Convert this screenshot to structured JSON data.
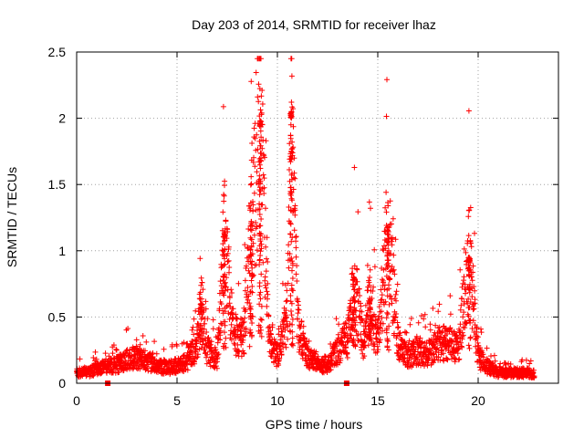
{
  "chart_data": {
    "type": "scatter",
    "title": "Day 203 of 2014, SRMTID for receiver lhaz",
    "xlabel": "GPS time / hours",
    "ylabel": "SRMTID / TECUs",
    "xlim": [
      0,
      24
    ],
    "ylim": [
      0,
      2.5
    ],
    "xticks": [
      0,
      5,
      10,
      15,
      20
    ],
    "xtick_labels": [
      "0",
      "5",
      "10",
      "15",
      "20"
    ],
    "yticks": [
      0,
      0.5,
      1,
      1.5,
      2,
      2.5
    ],
    "ytick_labels": [
      "0",
      "0.5",
      "1",
      "1.5",
      "2",
      "2.5"
    ],
    "grid": true,
    "marker": "+",
    "series_color": "#ff0000",
    "series": [
      {
        "name": "SRMTID",
        "approx_profile": [
          {
            "x": 0.0,
            "y": 0.08
          },
          {
            "x": 0.5,
            "y": 0.08
          },
          {
            "x": 1.0,
            "y": 0.11
          },
          {
            "x": 1.5,
            "y": 0.12
          },
          {
            "x": 2.0,
            "y": 0.14
          },
          {
            "x": 2.5,
            "y": 0.18
          },
          {
            "x": 3.0,
            "y": 0.2
          },
          {
            "x": 3.5,
            "y": 0.17
          },
          {
            "x": 4.0,
            "y": 0.13
          },
          {
            "x": 4.5,
            "y": 0.12
          },
          {
            "x": 5.0,
            "y": 0.13
          },
          {
            "x": 5.5,
            "y": 0.17
          },
          {
            "x": 6.0,
            "y": 0.3
          },
          {
            "x": 6.2,
            "y": 0.58
          },
          {
            "x": 6.5,
            "y": 0.25
          },
          {
            "x": 7.0,
            "y": 0.18
          },
          {
            "x": 7.35,
            "y": 1.1
          },
          {
            "x": 7.8,
            "y": 0.38
          },
          {
            "x": 8.3,
            "y": 0.33
          },
          {
            "x": 8.7,
            "y": 1.2
          },
          {
            "x": 9.15,
            "y": 1.97
          },
          {
            "x": 9.6,
            "y": 0.28
          },
          {
            "x": 10.0,
            "y": 0.22
          },
          {
            "x": 10.5,
            "y": 0.5
          },
          {
            "x": 10.7,
            "y": 2.05
          },
          {
            "x": 11.0,
            "y": 0.45
          },
          {
            "x": 11.5,
            "y": 0.2
          },
          {
            "x": 12.0,
            "y": 0.15
          },
          {
            "x": 12.5,
            "y": 0.14
          },
          {
            "x": 13.0,
            "y": 0.25
          },
          {
            "x": 13.5,
            "y": 0.35
          },
          {
            "x": 13.8,
            "y": 0.78
          },
          {
            "x": 14.3,
            "y": 0.3
          },
          {
            "x": 14.6,
            "y": 0.62
          },
          {
            "x": 15.0,
            "y": 0.3
          },
          {
            "x": 15.5,
            "y": 1.17
          },
          {
            "x": 16.0,
            "y": 0.3
          },
          {
            "x": 16.5,
            "y": 0.2
          },
          {
            "x": 17.0,
            "y": 0.25
          },
          {
            "x": 17.5,
            "y": 0.22
          },
          {
            "x": 18.0,
            "y": 0.3
          },
          {
            "x": 18.5,
            "y": 0.3
          },
          {
            "x": 19.0,
            "y": 0.25
          },
          {
            "x": 19.55,
            "y": 0.93
          },
          {
            "x": 20.0,
            "y": 0.2
          },
          {
            "x": 20.5,
            "y": 0.12
          },
          {
            "x": 21.0,
            "y": 0.08
          },
          {
            "x": 21.5,
            "y": 0.08
          },
          {
            "x": 22.0,
            "y": 0.08
          },
          {
            "x": 22.5,
            "y": 0.08
          },
          {
            "x": 22.8,
            "y": 0.07
          }
        ],
        "peaks": [
          {
            "x": 6.2,
            "y": 0.6
          },
          {
            "x": 7.35,
            "y": 1.13
          },
          {
            "x": 8.7,
            "y": 1.22
          },
          {
            "x": 9.15,
            "y": 1.98
          },
          {
            "x": 10.7,
            "y": 2.05
          },
          {
            "x": 13.8,
            "y": 0.8
          },
          {
            "x": 14.6,
            "y": 0.64
          },
          {
            "x": 15.5,
            "y": 1.18
          },
          {
            "x": 19.55,
            "y": 0.95
          }
        ],
        "outliers": [
          {
            "x": 1.55,
            "y": 0.0
          },
          {
            "x": 13.45,
            "y": 0.0
          }
        ]
      }
    ]
  }
}
